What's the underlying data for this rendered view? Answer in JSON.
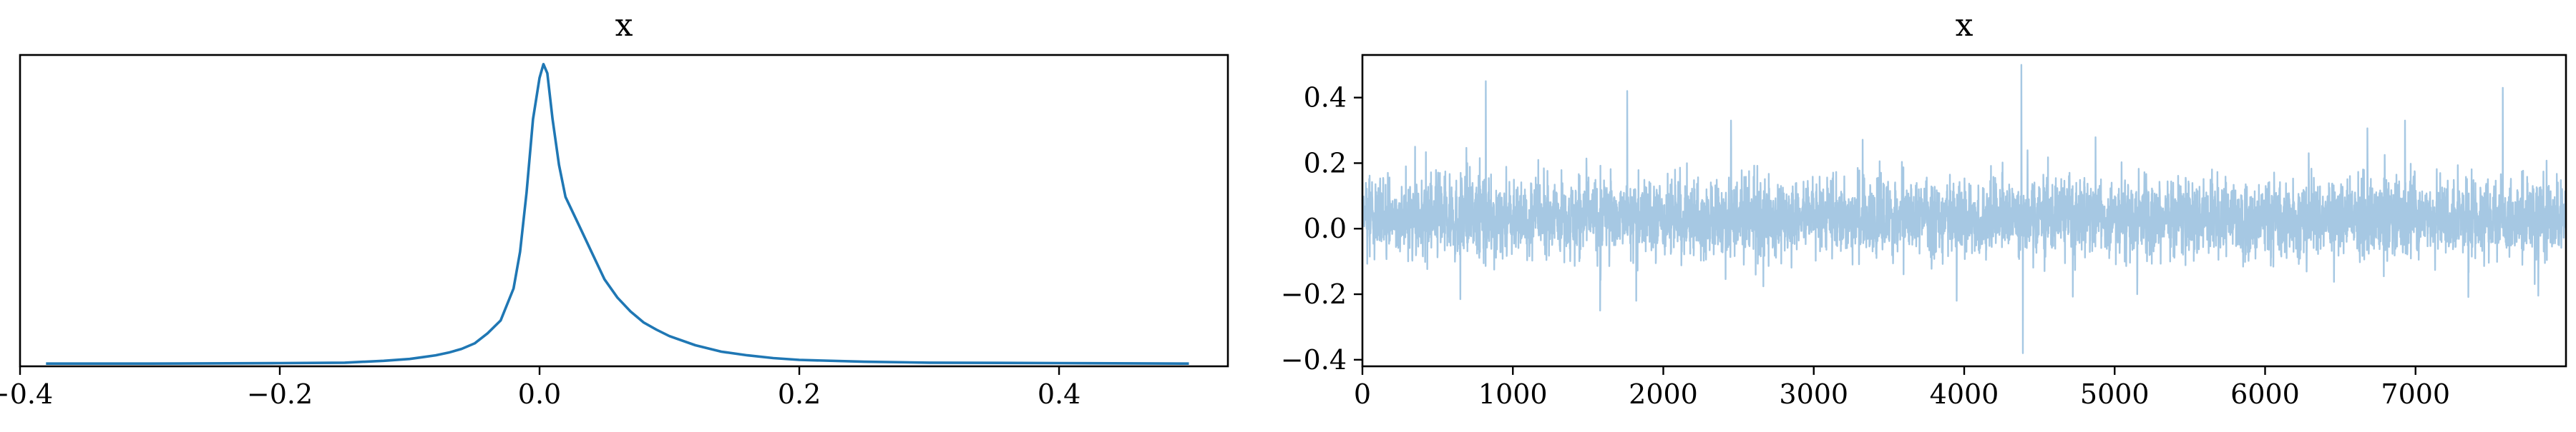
{
  "chart_data": [
    {
      "type": "line",
      "title": "x",
      "xlabel": "",
      "ylabel": "",
      "xlim": [
        -0.4,
        0.53
      ],
      "ylim": [
        0,
        34
      ],
      "grid": false,
      "xticks": [
        -0.4,
        -0.2,
        0.0,
        0.2,
        0.4
      ],
      "xtick_labels": [
        "−0.4",
        "−0.2",
        "0.0",
        "0.2",
        "0.4"
      ],
      "yticks": [],
      "color": "#1f77b4",
      "series": [
        {
          "x": [
            -0.38,
            -0.3,
            -0.2,
            -0.15,
            -0.12,
            -0.1,
            -0.09,
            -0.08,
            -0.07,
            -0.06,
            -0.05,
            -0.04,
            -0.03,
            -0.02,
            -0.015,
            -0.01,
            -0.005,
            0.0,
            0.003,
            0.006,
            0.01,
            0.015,
            0.02,
            0.03,
            0.04,
            0.05,
            0.06,
            0.07,
            0.08,
            0.09,
            0.1,
            0.12,
            0.14,
            0.16,
            0.18,
            0.2,
            0.25,
            0.3,
            0.4,
            0.5
          ],
          "y": [
            0.3,
            0.3,
            0.35,
            0.4,
            0.6,
            0.8,
            1.0,
            1.2,
            1.5,
            1.9,
            2.5,
            3.6,
            5.0,
            8.5,
            12.5,
            19.0,
            27.0,
            31.5,
            33.0,
            32.0,
            27.0,
            22.0,
            18.5,
            15.5,
            12.5,
            9.5,
            7.5,
            6.0,
            4.8,
            4.0,
            3.3,
            2.3,
            1.6,
            1.2,
            0.9,
            0.7,
            0.5,
            0.4,
            0.35,
            0.3
          ]
        }
      ]
    },
    {
      "type": "line",
      "title": "x",
      "xlabel": "",
      "ylabel": "",
      "xlim": [
        0,
        8000
      ],
      "ylim": [
        -0.42,
        0.53
      ],
      "grid": false,
      "n_samples": 8000,
      "xticks": [
        0,
        1000,
        2000,
        3000,
        4000,
        5000,
        6000,
        7000
      ],
      "xtick_labels": [
        "0",
        "1000",
        "2000",
        "3000",
        "4000",
        "5000",
        "6000",
        "7000"
      ],
      "yticks": [
        -0.4,
        -0.2,
        0.0,
        0.2,
        0.4
      ],
      "ytick_labels": [
        "−0.4",
        "−0.2",
        "0.0",
        "0.2",
        "0.4"
      ],
      "color": "#a6c8e3",
      "series": [
        {
          "typical_range": [
            -0.08,
            0.15
          ],
          "spikes": [
            {
              "x": 350,
              "y": 0.25
            },
            {
              "x": 820,
              "y": 0.45
            },
            {
              "x": 1580,
              "y": -0.25
            },
            {
              "x": 1760,
              "y": 0.42
            },
            {
              "x": 1820,
              "y": -0.22
            },
            {
              "x": 2450,
              "y": 0.33
            },
            {
              "x": 3950,
              "y": -0.22
            },
            {
              "x": 4380,
              "y": 0.5
            },
            {
              "x": 4390,
              "y": -0.38
            },
            {
              "x": 5150,
              "y": -0.2
            },
            {
              "x": 6930,
              "y": 0.33
            },
            {
              "x": 7580,
              "y": 0.43
            }
          ]
        }
      ]
    }
  ]
}
